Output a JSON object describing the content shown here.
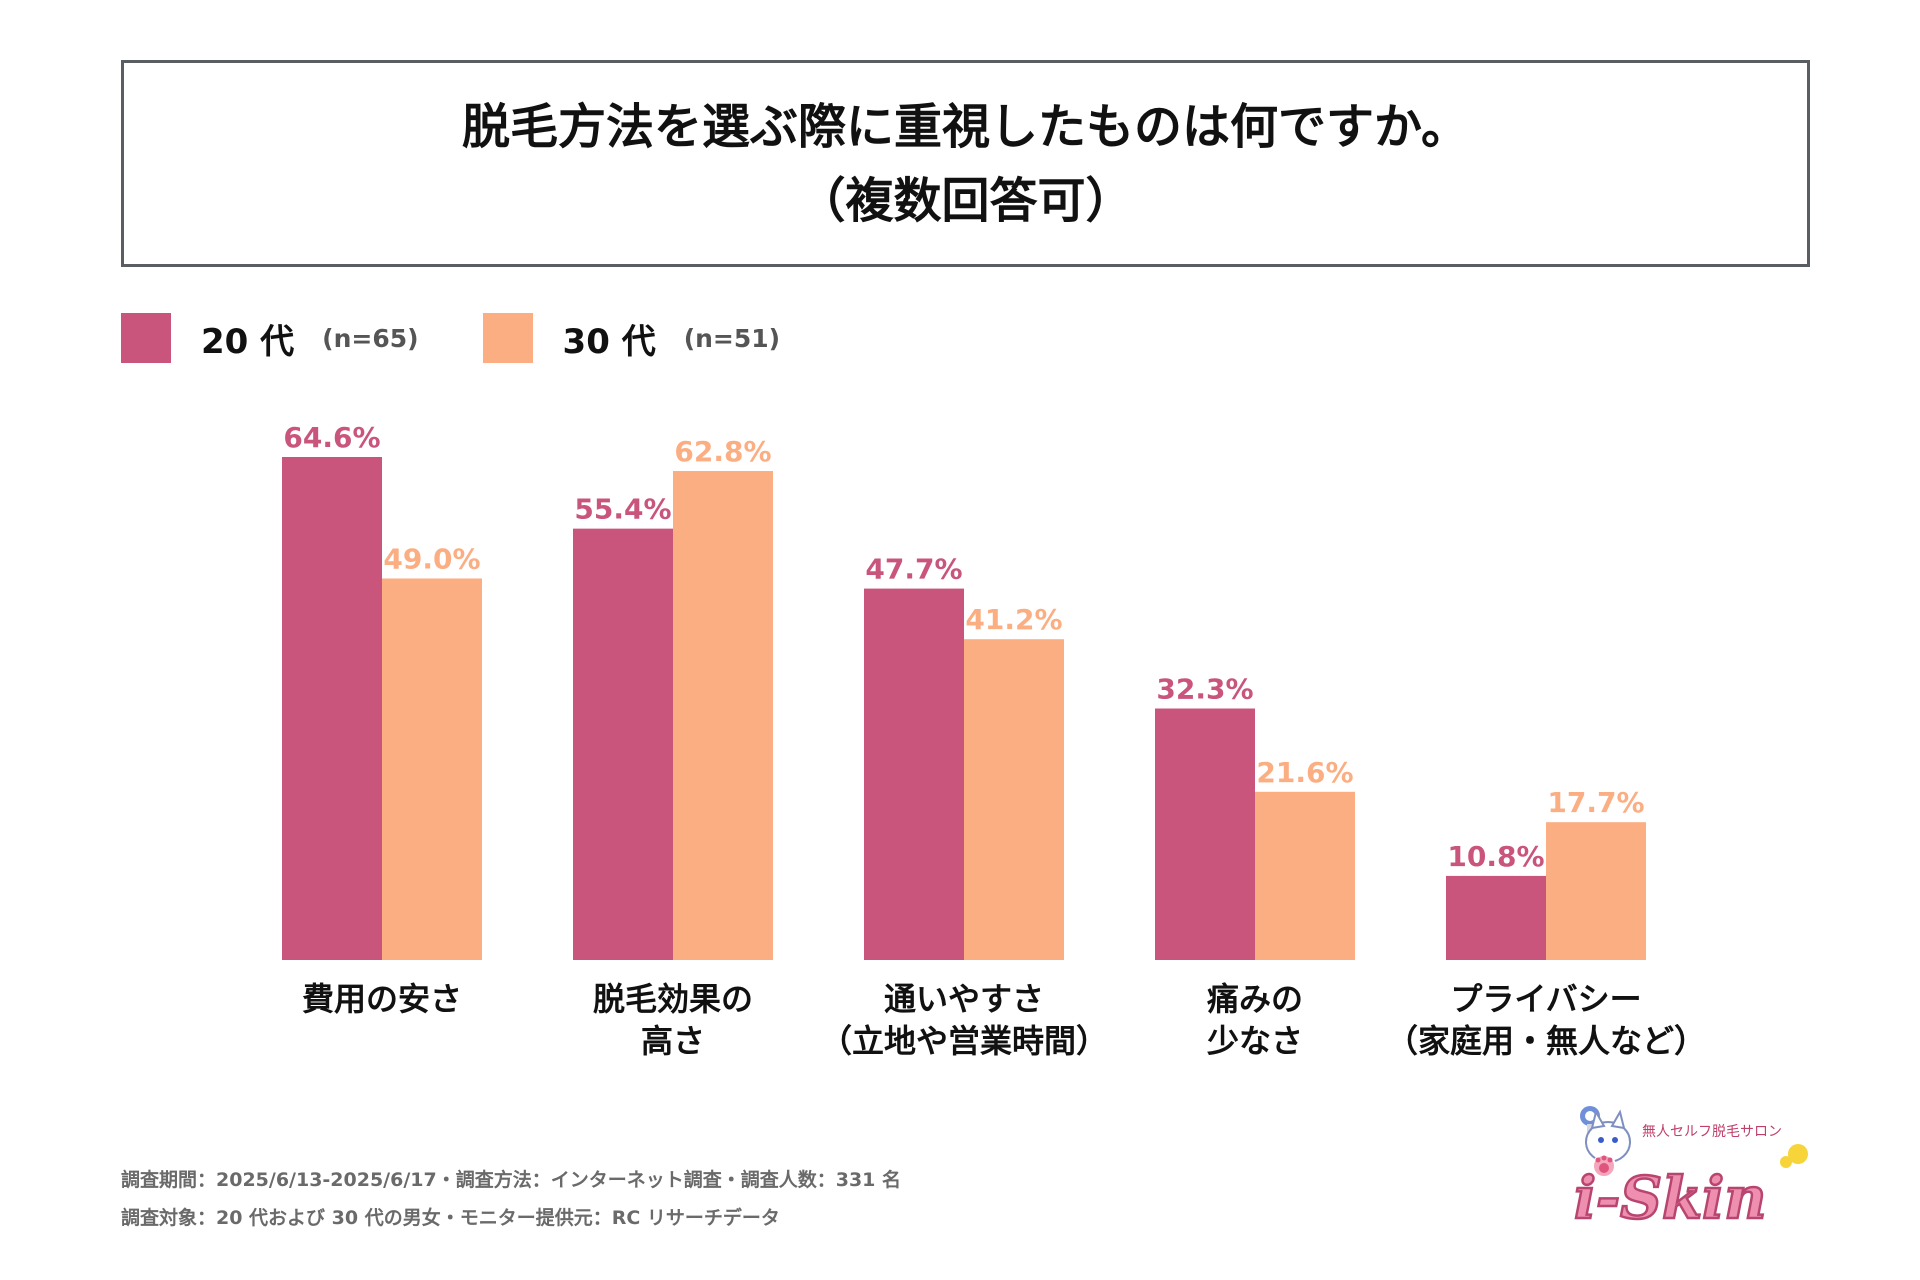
{
  "title": {
    "line1": "脱毛方法を選ぶ際に重視したものは何ですか。",
    "line2": "（複数回答可）"
  },
  "legend": [
    {
      "label": "20 代",
      "n": "(n=65)",
      "color": "#c9557c"
    },
    {
      "label": "30 代",
      "n": "(n=51)",
      "color": "#fcae83"
    }
  ],
  "chart_data": {
    "type": "bar",
    "title": "脱毛方法を選ぶ際に重視したものは何ですか。（複数回答可）",
    "categories": [
      [
        "費用の安さ"
      ],
      [
        "脱毛効果の",
        "高さ"
      ],
      [
        "通いやすさ",
        "（立地や営業時間）"
      ],
      [
        "痛みの",
        "少なさ"
      ],
      [
        "プライバシー",
        "（家庭用・無人など）"
      ]
    ],
    "series": [
      {
        "name": "20 代",
        "values": [
          64.6,
          55.4,
          47.7,
          32.3,
          10.8
        ],
        "labels": [
          "64.6%",
          "55.4%",
          "47.7%",
          "32.3%",
          "10.8%"
        ],
        "color": "#c9557c"
      },
      {
        "name": "30 代",
        "values": [
          49.0,
          62.8,
          41.2,
          21.6,
          17.7
        ],
        "labels": [
          "49.0%",
          "62.8%",
          "41.2%",
          "21.6%",
          "17.7%"
        ],
        "color": "#fcae83"
      }
    ],
    "ylim": [
      0,
      64.6
    ],
    "xlabel": "",
    "ylabel": "",
    "grid": false
  },
  "footer": {
    "line1": "調査期間：2025/6/13-2025/6/17・調査方法：インターネット調査・調査人数：331 名",
    "line2": "調査対象：20 代および 30 代の男女・モニター提供元：RC リサーチデータ"
  },
  "logo": {
    "tagline": "無人セルフ脱毛サロン",
    "brand": "i-Skin"
  }
}
